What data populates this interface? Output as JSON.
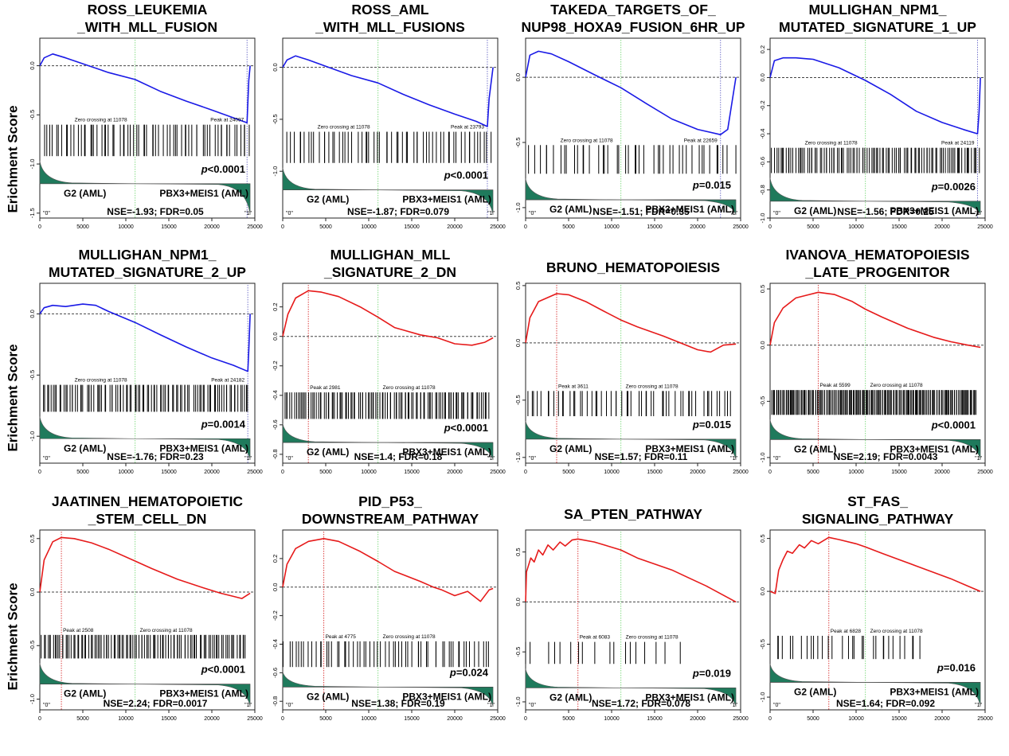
{
  "figure": {
    "ylabel": "Erichment Score",
    "group_left": "G2 (AML)",
    "group_right": "PBX3+MEIS1 (AML)",
    "pos_label": "\"0\"",
    "neg_label": "\"1\"",
    "colors": {
      "negative": "#1a1ae6",
      "positive": "#e61a1a",
      "metric_fill": "#1f7a5c",
      "zero_line": "#88dd88",
      "peak_line": "#dd4444"
    }
  },
  "chart_data": [
    {
      "type": "line",
      "title": [
        "ROSS_LEUKEMIA",
        "_WITH_MLL_FUSION"
      ],
      "direction": "negative",
      "x": [
        0,
        500,
        1500,
        3000,
        5000,
        8000,
        11078,
        14000,
        17000,
        20000,
        22500,
        24097,
        24300,
        24450
      ],
      "y": [
        0,
        0.08,
        0.12,
        0.08,
        0.02,
        -0.07,
        -0.14,
        -0.26,
        -0.36,
        -0.45,
        -0.53,
        -0.58,
        -0.15,
        0.0
      ],
      "ylim": [
        -1.55,
        0.28
      ],
      "yticks": [
        0.0,
        -0.5,
        -1.0,
        -1.5
      ],
      "xticks": [
        0,
        5000,
        10000,
        15000,
        20000,
        25000
      ],
      "zero_crossing_label": "Zero crossing at 11078",
      "zero_crossing": 11078,
      "peak_label": "Peak at 24097",
      "peak": 24097,
      "pvalue": "<0.0001",
      "nse_fdr": "NSE=-1.93;  FDR=0.05",
      "hits": {
        "count": 70,
        "density": "medium",
        "range": [
          600,
          24300
        ]
      },
      "band": [
        -0.6,
        -0.92
      ],
      "metric_zero": -1.2
    },
    {
      "type": "line",
      "title": [
        "ROSS_AML",
        "_WITH_MLL_FUSIONS"
      ],
      "direction": "negative",
      "x": [
        0,
        500,
        1500,
        3000,
        5000,
        8000,
        11078,
        14000,
        17000,
        20000,
        22500,
        23793,
        24000,
        24450
      ],
      "y": [
        0,
        0.07,
        0.11,
        0.07,
        0.01,
        -0.08,
        -0.15,
        -0.26,
        -0.36,
        -0.45,
        -0.52,
        -0.57,
        -0.3,
        0.0
      ],
      "ylim": [
        -1.45,
        0.28
      ],
      "yticks": [
        0.0,
        -0.5,
        -1.0
      ],
      "xticks": [
        0,
        5000,
        10000,
        15000,
        20000,
        25000
      ],
      "zero_crossing_label": "Zero crossing at 11078",
      "zero_crossing": 11078,
      "peak_label": "Peak at 23793",
      "peak": 23793,
      "pvalue": "<0.0001",
      "nse_fdr": "NSE=-1.87;  FDR=0.079",
      "hits": {
        "count": 60,
        "density": "medium",
        "range": [
          600,
          24300
        ]
      },
      "band": [
        -0.62,
        -0.92
      ],
      "metric_zero": -1.18
    },
    {
      "type": "line",
      "title": [
        "TAKEDA_TARGETS_OF_",
        "NUP98_HOXA9_FUSION_6HR_UP"
      ],
      "direction": "negative",
      "x": [
        0,
        500,
        1500,
        3000,
        5000,
        8000,
        11078,
        14000,
        17000,
        20000,
        22659,
        23500,
        24450
      ],
      "y": [
        0,
        0.17,
        0.2,
        0.18,
        0.12,
        0.02,
        -0.08,
        -0.2,
        -0.32,
        -0.4,
        -0.44,
        -0.4,
        0.0
      ],
      "ylim": [
        -1.08,
        0.3
      ],
      "yticks": [
        0.0,
        -0.5,
        -1.0
      ],
      "xticks": [
        0,
        5000,
        10000,
        15000,
        20000,
        25000
      ],
      "zero_crossing_label": "Zero crossing at 11078",
      "zero_crossing": 11078,
      "peak_label": "Peak at 22659",
      "peak": 22659,
      "pvalue": "=0.015",
      "nse_fdr": "NSE=-1.51;  FDR=0.35",
      "hits": {
        "count": 45,
        "density": "sparse",
        "range": [
          600,
          24300
        ]
      },
      "band": [
        -0.52,
        -0.74
      ],
      "metric_zero": -0.94
    },
    {
      "type": "line",
      "title": [
        "MULLIGHAN_NPM1_",
        "MUTATED_SIGNATURE_1_UP"
      ],
      "direction": "negative",
      "x": [
        0,
        500,
        1500,
        3000,
        5000,
        8000,
        11078,
        14000,
        17000,
        20000,
        22500,
        24119,
        24300,
        24450
      ],
      "y": [
        0,
        0.12,
        0.14,
        0.14,
        0.13,
        0.07,
        -0.02,
        -0.12,
        -0.24,
        -0.32,
        -0.37,
        -0.4,
        -0.25,
        0.0
      ],
      "ylim": [
        -1.0,
        0.28
      ],
      "yticks": [
        0.2,
        0.0,
        -0.2,
        -0.4,
        -0.6,
        -0.8,
        -1.0
      ],
      "xticks": [
        0,
        5000,
        10000,
        15000,
        20000,
        25000
      ],
      "zero_crossing_label": "Zero crossing at 11078",
      "zero_crossing": 11078,
      "peak_label": "Peak at 24119",
      "peak": 24119,
      "pvalue": "=0.0026",
      "nse_fdr": "NSE=-1.56;  FDR=0.25",
      "hits": {
        "count": 110,
        "density": "dense",
        "range": [
          300,
          24300
        ]
      },
      "band": [
        -0.5,
        -0.68
      ],
      "metric_zero": -0.88
    },
    {
      "type": "line",
      "title": [
        "MULLIGHAN_NPM1_",
        "MUTATED_SIGNATURE_2_UP"
      ],
      "direction": "negative",
      "x": [
        0,
        500,
        1500,
        3000,
        5000,
        6500,
        8000,
        11078,
        14000,
        17000,
        20000,
        22500,
        24182,
        24300,
        24450
      ],
      "y": [
        0,
        0.05,
        0.07,
        0.06,
        0.08,
        0.07,
        0.02,
        -0.07,
        -0.17,
        -0.27,
        -0.36,
        -0.42,
        -0.47,
        -0.3,
        0.0
      ],
      "ylim": [
        -1.22,
        0.25
      ],
      "yticks": [
        0.0,
        -0.5,
        -1.0
      ],
      "xticks": [
        0,
        5000,
        10000,
        15000,
        20000,
        25000
      ],
      "zero_crossing_label": "Zero crossing at 11078",
      "zero_crossing": 11078,
      "peak_label": "Peak at 24182",
      "peak": 24182,
      "pvalue": "=0.0014",
      "nse_fdr": "NSE=-1.76;  FDR=0.23",
      "hits": {
        "count": 100,
        "density": "dense",
        "range": [
          300,
          24300
        ]
      },
      "band": [
        -0.58,
        -0.8
      ],
      "metric_zero": -1.02
    },
    {
      "type": "line",
      "title": [
        "MULLIGHAN_MLL",
        "_SIGNATURE_2_DN"
      ],
      "direction": "positive",
      "x": [
        0,
        600,
        1500,
        2981,
        4500,
        6500,
        9000,
        11078,
        13000,
        16000,
        18000,
        20000,
        22000,
        23500,
        24450
      ],
      "y": [
        0,
        0.15,
        0.26,
        0.31,
        0.3,
        0.27,
        0.2,
        0.13,
        0.06,
        0.01,
        -0.01,
        -0.05,
        -0.06,
        -0.04,
        -0.01
      ],
      "ylim": [
        -0.86,
        0.36
      ],
      "yticks": [
        0.2,
        0.0,
        -0.2,
        -0.4,
        -0.6,
        -0.8
      ],
      "xticks": [
        0,
        5000,
        10000,
        15000,
        20000,
        25000
      ],
      "zero_crossing_label": "Zero crossing at 11078",
      "zero_crossing": 11078,
      "peak_label": "Peak at 2981",
      "peak": 2981,
      "pvalue": "<0.0001",
      "nse_fdr": "NSE=1.4;  FDR=0.18",
      "hits": {
        "count": 110,
        "density": "dense",
        "range": [
          200,
          24000
        ]
      },
      "band": [
        -0.38,
        -0.56
      ],
      "metric_zero": -0.72
    },
    {
      "type": "line",
      "title": [
        "BRUNO_HEMATOPOIESIS"
      ],
      "direction": "positive",
      "x": [
        0,
        500,
        1500,
        3611,
        5000,
        7000,
        9000,
        11078,
        13000,
        16000,
        18000,
        20000,
        21500,
        23000,
        24450
      ],
      "y": [
        0,
        0.22,
        0.36,
        0.43,
        0.42,
        0.36,
        0.28,
        0.2,
        0.14,
        0.06,
        0.0,
        -0.06,
        -0.08,
        -0.02,
        -0.01
      ],
      "ylim": [
        -1.05,
        0.52
      ],
      "yticks": [
        0.5,
        0.0,
        -0.5,
        -1.0
      ],
      "xticks": [
        0,
        5000,
        10000,
        15000,
        20000,
        25000
      ],
      "zero_crossing_label": "Zero crossing at 11078",
      "zero_crossing": 11078,
      "peak_label": "Peak at 3611",
      "peak": 3611,
      "pvalue": "=0.015",
      "nse_fdr": "NSE=1.57;  FDR=0.11",
      "hits": {
        "count": 55,
        "density": "sparse",
        "range": [
          200,
          24000
        ]
      },
      "band": [
        -0.42,
        -0.64
      ],
      "metric_zero": -0.84
    },
    {
      "type": "line",
      "title": [
        "IVANOVA_HEMATOPOIESIS",
        "_LATE_PROGENITOR"
      ],
      "direction": "positive",
      "x": [
        0,
        500,
        1500,
        3000,
        5599,
        7500,
        9500,
        11078,
        13000,
        16000,
        19000,
        21000,
        23000,
        24450
      ],
      "y": [
        0,
        0.2,
        0.33,
        0.42,
        0.47,
        0.45,
        0.39,
        0.32,
        0.25,
        0.15,
        0.07,
        0.03,
        0.0,
        -0.02
      ],
      "ylim": [
        -1.05,
        0.55
      ],
      "yticks": [
        0.5,
        0.0,
        -0.5,
        -1.0
      ],
      "xticks": [
        0,
        5000,
        10000,
        15000,
        20000,
        25000
      ],
      "zero_crossing_label": "Zero crossing at 11078",
      "zero_crossing": 11078,
      "peak_label": "Peak at 5599",
      "peak": 5599,
      "pvalue": "<0.0001",
      "nse_fdr": "NSE=2.19;  FDR=0.0043",
      "hits": {
        "count": 190,
        "density": "dense",
        "range": [
          200,
          24000
        ]
      },
      "band": [
        -0.4,
        -0.62
      ],
      "metric_zero": -0.84
    },
    {
      "type": "line",
      "title": [
        "JAATINEN_HEMATOPOIETIC",
        "_STEM_CELL_DN"
      ],
      "direction": "positive",
      "x": [
        0,
        500,
        1500,
        2508,
        4000,
        6000,
        8000,
        11078,
        13000,
        16000,
        19000,
        21000,
        22500,
        23500,
        24450
      ],
      "y": [
        0,
        0.3,
        0.47,
        0.51,
        0.5,
        0.46,
        0.4,
        0.29,
        0.22,
        0.12,
        0.04,
        -0.01,
        -0.04,
        -0.06,
        -0.01
      ],
      "ylim": [
        -1.1,
        0.58
      ],
      "yticks": [
        0.5,
        0.0,
        -0.5,
        -1.0
      ],
      "xticks": [
        0,
        5000,
        10000,
        15000,
        20000,
        25000
      ],
      "zero_crossing_label": "Zero crossing at 11078",
      "zero_crossing": 11078,
      "peak_label": "Peak at 2508",
      "peak": 2508,
      "pvalue": "<0.0001",
      "nse_fdr": "NSE=2.24;  FDR=0.0017",
      "hits": {
        "count": 110,
        "density": "dense",
        "range": [
          200,
          24000
        ]
      },
      "band": [
        -0.4,
        -0.62
      ],
      "metric_zero": -0.86
    },
    {
      "type": "line",
      "title": [
        "PID_P53_",
        "DOWNSTREAM_PATHWAY"
      ],
      "direction": "positive",
      "x": [
        0,
        500,
        1500,
        3000,
        4775,
        6500,
        9000,
        11078,
        13000,
        16000,
        17500,
        18500,
        20000,
        21500,
        23000,
        24000,
        24450
      ],
      "y": [
        0,
        0.16,
        0.27,
        0.32,
        0.34,
        0.32,
        0.25,
        0.18,
        0.11,
        0.04,
        0.0,
        -0.02,
        -0.06,
        -0.03,
        -0.1,
        -0.02,
        -0.01
      ],
      "ylim": [
        -0.86,
        0.4
      ],
      "yticks": [
        0.2,
        0.0,
        -0.2,
        -0.4,
        -0.6,
        -0.8
      ],
      "xticks": [
        0,
        5000,
        10000,
        15000,
        20000,
        25000
      ],
      "zero_crossing_label": "Zero crossing at 11078",
      "zero_crossing": 11078,
      "peak_label": "Peak at 4775",
      "peak": 4775,
      "pvalue": "=0.024",
      "nse_fdr": "NSE=1.38;  FDR=0.19",
      "hits": {
        "count": 60,
        "density": "medium",
        "range": [
          200,
          24000
        ]
      },
      "band": [
        -0.38,
        -0.56
      ],
      "metric_zero": -0.7
    },
    {
      "type": "line",
      "title": [
        "SA_PTEN_PATHWAY"
      ],
      "direction": "positive",
      "x": [
        0,
        100,
        600,
        1000,
        1500,
        2000,
        2600,
        3200,
        4000,
        4600,
        5400,
        6083,
        8000,
        11078,
        13000,
        15000,
        17000,
        19000,
        21000,
        22500,
        24450
      ],
      "y": [
        0,
        0.3,
        0.44,
        0.4,
        0.52,
        0.47,
        0.57,
        0.52,
        0.6,
        0.56,
        0.62,
        0.63,
        0.6,
        0.52,
        0.44,
        0.38,
        0.32,
        0.24,
        0.16,
        0.09,
        0.0
      ],
      "ylim": [
        -1.08,
        0.72
      ],
      "yticks": [
        0.5,
        0.0,
        -0.5,
        -1.0
      ],
      "xticks": [
        0,
        5000,
        10000,
        15000,
        20000,
        25000
      ],
      "zero_crossing_label": "Zero crossing at 11078",
      "zero_crossing": 11078,
      "peak_label": "Peak at 6083",
      "peak": 6083,
      "pvalue": "=0.019",
      "nse_fdr": "NSE=1.72;  FDR=0.078",
      "hits": {
        "count": 18,
        "density": "sparse",
        "range": [
          100,
          17500
        ]
      },
      "band": [
        -0.4,
        -0.62
      ],
      "metric_zero": -0.86
    },
    {
      "type": "line",
      "title": [
        "ST_FAS_",
        "SIGNALING_PATHWAY"
      ],
      "direction": "positive",
      "x": [
        0,
        600,
        1000,
        1500,
        2000,
        2600,
        3400,
        4000,
        4800,
        5600,
        6828,
        8000,
        10000,
        11078,
        13000,
        15000,
        17000,
        19000,
        21000,
        23000,
        24450
      ],
      "y": [
        0,
        -0.02,
        0.2,
        0.3,
        0.38,
        0.36,
        0.44,
        0.41,
        0.48,
        0.45,
        0.51,
        0.49,
        0.45,
        0.42,
        0.36,
        0.3,
        0.24,
        0.18,
        0.12,
        0.05,
        0.0
      ],
      "ylim": [
        -1.12,
        0.58
      ],
      "yticks": [
        0.5,
        0.0,
        -0.5,
        -1.0
      ],
      "xticks": [
        0,
        5000,
        10000,
        15000,
        20000,
        25000
      ],
      "zero_crossing_label": "Zero crossing at 11078",
      "zero_crossing": 11078,
      "peak_label": "Peak at 6828",
      "peak": 6828,
      "pvalue": "=0.016",
      "nse_fdr": "NSE=1.64;  FDR=0.092",
      "hits": {
        "count": 30,
        "density": "sparse",
        "range": [
          600,
          17500
        ]
      },
      "band": [
        -0.42,
        -0.64
      ],
      "metric_zero": -0.86
    }
  ]
}
